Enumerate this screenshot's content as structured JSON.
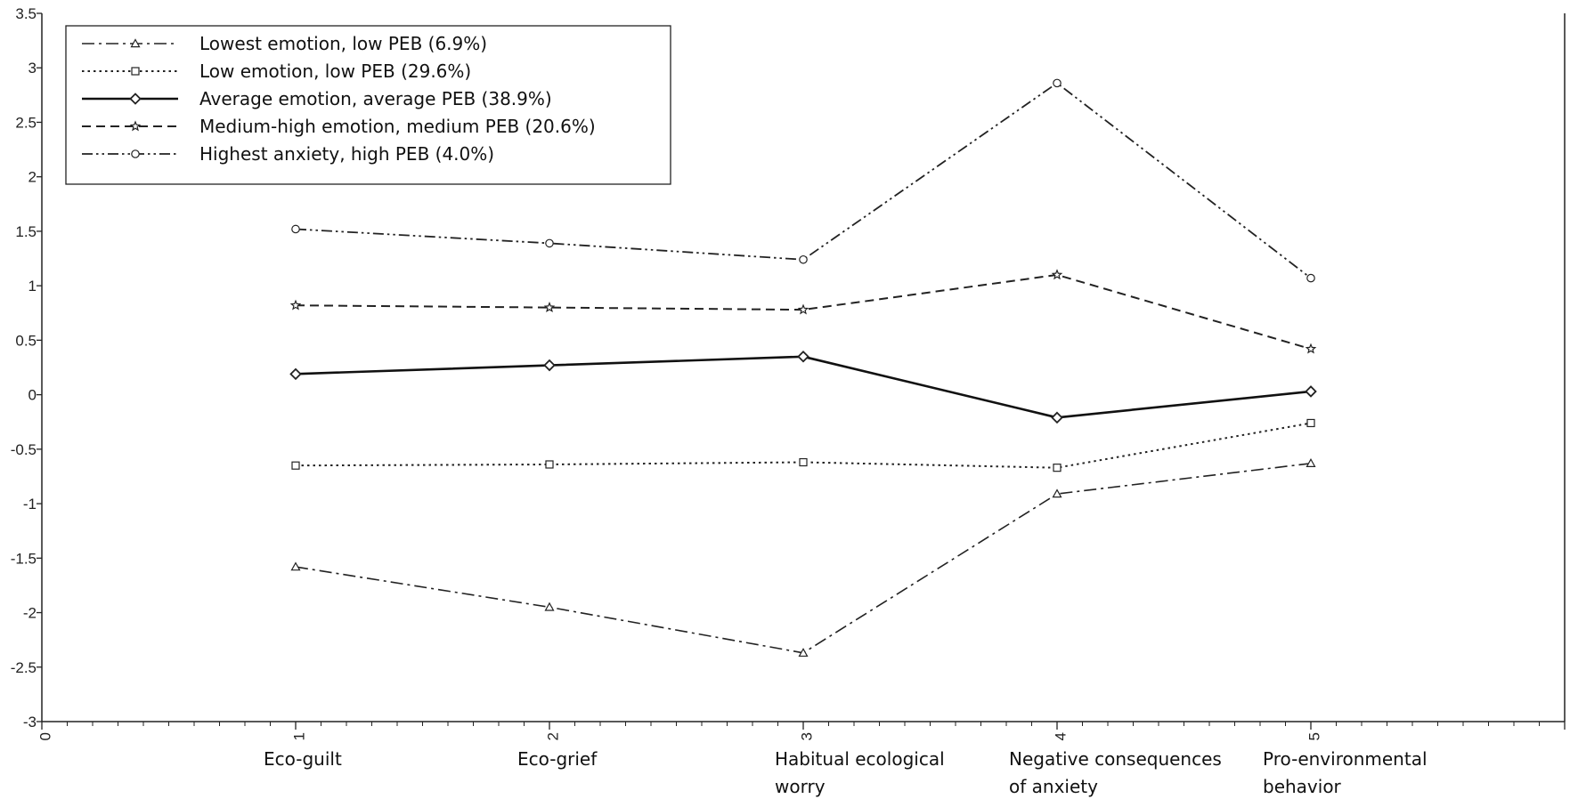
{
  "chart_data": {
    "type": "line",
    "x": [
      1,
      2,
      3,
      4,
      5
    ],
    "x_ticks": [
      "0",
      "1",
      "2",
      "3",
      "4",
      "5"
    ],
    "categories": [
      [
        "Eco-guilt"
      ],
      [
        "Eco-grief"
      ],
      [
        "Habitual ecological",
        "worry"
      ],
      [
        "Negative consequences",
        "of anxiety"
      ],
      [
        "Pro-environmental",
        "behavior"
      ]
    ],
    "y_ticks": [
      "-3",
      "-2.5",
      "-2",
      "-1.5",
      "-1",
      "-0.5",
      "0",
      "0.5",
      "1",
      "1.5",
      "2",
      "2.5",
      "3",
      "3.5"
    ],
    "ylim": [
      -3,
      3.5
    ],
    "xlim": [
      0,
      7
    ],
    "grid": false,
    "legend_position": "top-left",
    "series": [
      {
        "name": "Lowest emotion, low PEB (6.9%)",
        "values": [
          -1.58,
          -1.95,
          -2.37,
          -0.91,
          -0.63
        ],
        "dash": "14,5,3,5",
        "marker": "triangle",
        "color": "#222222",
        "width": 1.6
      },
      {
        "name": "Low emotion, low PEB (29.6%)",
        "values": [
          -0.65,
          -0.64,
          -0.62,
          -0.67,
          -0.26
        ],
        "dash": "2.5,4",
        "marker": "square",
        "color": "#222222",
        "width": 2
      },
      {
        "name": "Average emotion, average PEB (38.9%)",
        "values": [
          0.19,
          0.27,
          0.35,
          -0.21,
          0.03
        ],
        "dash": "",
        "marker": "diamond",
        "color": "#111111",
        "width": 2.6
      },
      {
        "name": "Medium-high emotion, medium PEB (20.6%)",
        "values": [
          0.82,
          0.8,
          0.78,
          1.1,
          0.42
        ],
        "dash": "10,6",
        "marker": "star",
        "color": "#222222",
        "width": 2
      },
      {
        "name": "Highest anxiety, high PEB (4.0%)",
        "values": [
          1.52,
          1.39,
          1.24,
          2.86,
          1.07
        ],
        "dash": "12,4,2.5,4,2.5,4",
        "marker": "circle",
        "color": "#222222",
        "width": 1.8
      }
    ]
  }
}
